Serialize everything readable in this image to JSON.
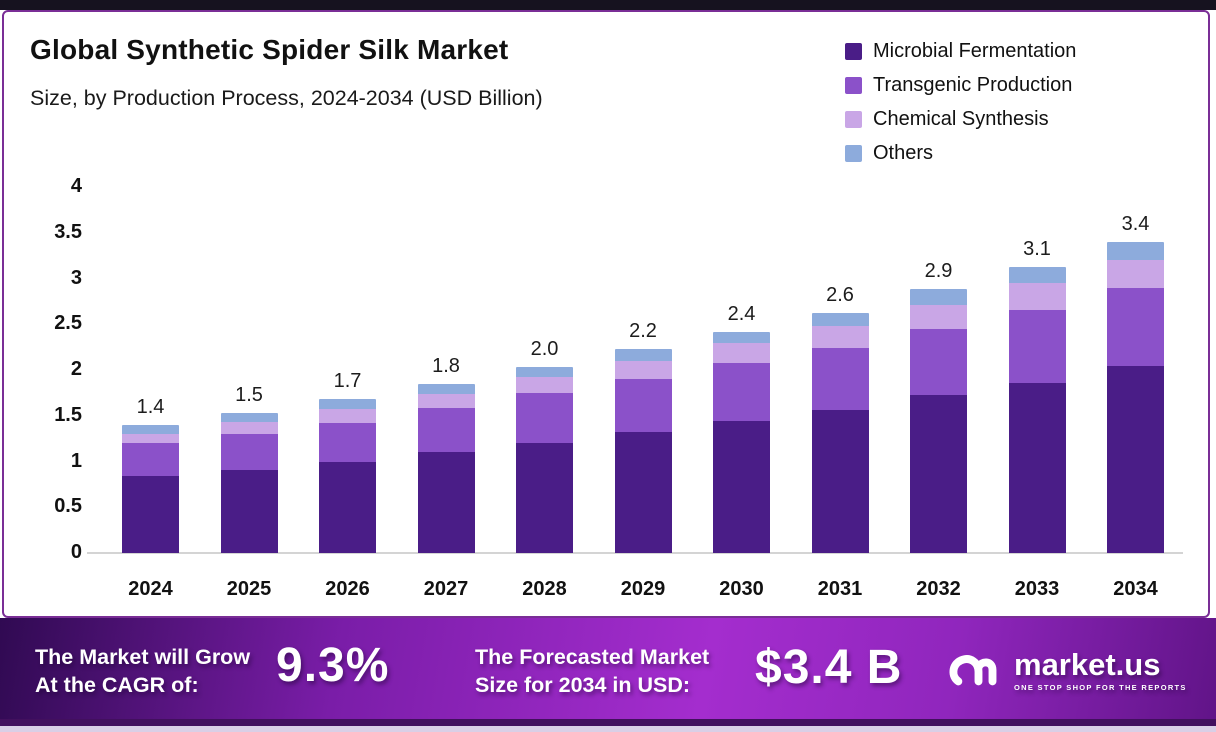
{
  "header": {
    "title": "Global Synthetic Spider Silk Market",
    "subtitle": "Size, by Production Process, 2024-2034 (USD Billion)"
  },
  "chart_data": {
    "type": "bar",
    "stacked": true,
    "title": "Global Synthetic Spider Silk Market Size, by Production Process, 2024-2034 (USD Billion)",
    "categories": [
      "2024",
      "2025",
      "2026",
      "2027",
      "2028",
      "2029",
      "2030",
      "2031",
      "2032",
      "2033",
      "2034"
    ],
    "series": [
      {
        "name": "Microbial Fermentation",
        "color": "#4a1d87",
        "values": [
          0.84,
          0.91,
          0.99,
          1.1,
          1.2,
          1.32,
          1.44,
          1.56,
          1.73,
          1.86,
          2.04
        ]
      },
      {
        "name": "Transgenic Production",
        "color": "#8b51c9",
        "values": [
          0.36,
          0.39,
          0.43,
          0.48,
          0.55,
          0.58,
          0.63,
          0.68,
          0.72,
          0.8,
          0.85
        ]
      },
      {
        "name": "Chemical Synthesis",
        "color": "#c9a6e6",
        "values": [
          0.1,
          0.13,
          0.15,
          0.15,
          0.17,
          0.2,
          0.22,
          0.24,
          0.26,
          0.29,
          0.31
        ]
      },
      {
        "name": "Others",
        "color": "#8dabdc",
        "values": [
          0.1,
          0.1,
          0.11,
          0.11,
          0.11,
          0.13,
          0.12,
          0.14,
          0.17,
          0.17,
          0.2
        ]
      }
    ],
    "totals": [
      "1.4",
      "1.5",
      "1.7",
      "1.8",
      "2.0",
      "2.2",
      "2.4",
      "2.6",
      "2.9",
      "3.1",
      "3.4"
    ],
    "yticks": [
      {
        "label": "0",
        "value": 0
      },
      {
        "label": "0.5",
        "value": 0.5
      },
      {
        "label": "1",
        "value": 1
      },
      {
        "label": "1.5",
        "value": 1.5
      },
      {
        "label": "2",
        "value": 2
      },
      {
        "label": "2.5",
        "value": 2.5
      },
      {
        "label": "3",
        "value": 3
      },
      {
        "label": "3.5",
        "value": 3.5
      },
      {
        "label": "4",
        "value": 4
      }
    ],
    "ylim": [
      0,
      4
    ],
    "grid": false,
    "legend_position": "top-right"
  },
  "banner": {
    "cagr_line1": "The Market will Grow",
    "cagr_line2": "At the CAGR of:",
    "cagr_value": "9.3%",
    "forecast_line1": "The Forecasted Market",
    "forecast_line2": "Size for 2034 in USD:",
    "forecast_value": "$3.4 B",
    "brand": "market.us",
    "brand_tagline": "ONE STOP SHOP FOR THE REPORTS"
  },
  "colors": {
    "frame_border": "#7a2e96",
    "top_strip": "#16121f",
    "axis_line": "#d4d4d4",
    "banner_dark": "#300a52",
    "banner_bright": "#a42dce"
  }
}
